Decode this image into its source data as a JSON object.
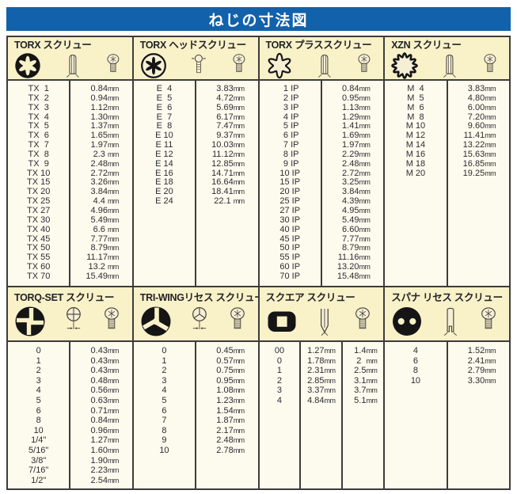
{
  "page_title": "ねじの寸法図",
  "unit_label": "mm",
  "colors": {
    "title_bar_bg": "#1261ab",
    "title_text": "#ffffff",
    "header_band_bg": "#f9f1c8",
    "data_bg": "#fdfbee",
    "border": "#3c3c3c",
    "icon_ink": "#151515"
  },
  "sections": [
    {
      "id": "torx-screw",
      "area": "top",
      "title": "TORX スクリュー",
      "icons": [
        "torx-socket-icon",
        "bit-side-icon",
        "screw-top-icon"
      ],
      "cols": 2,
      "unit": "mm",
      "rows": [
        [
          "TX  1",
          "0.84"
        ],
        [
          "TX  2",
          "0.94"
        ],
        [
          "TX  3",
          "1.12"
        ],
        [
          "TX  4",
          "1.30"
        ],
        [
          "TX  5",
          "1.37"
        ],
        [
          "TX  6",
          "1.65"
        ],
        [
          "TX  7",
          "1.97"
        ],
        [
          "TX  8",
          "2.3 "
        ],
        [
          "TX  9",
          "2.48"
        ],
        [
          "TX 10",
          "2.72"
        ],
        [
          "TX 15",
          "3.26"
        ],
        [
          "TX 20",
          "3.84"
        ],
        [
          "TX 25",
          "4.4 "
        ],
        [
          "TX 27",
          "4.96"
        ],
        [
          "TX 30",
          "5.49"
        ],
        [
          "TX 40",
          "6.6 "
        ],
        [
          "TX 45",
          "7.77"
        ],
        [
          "TX 50",
          "8.79"
        ],
        [
          "TX 55",
          "11.17"
        ],
        [
          "TX 60",
          "13.2 "
        ],
        [
          "TX 70",
          "15.49"
        ]
      ]
    },
    {
      "id": "torx-head-screw",
      "area": "top",
      "title": "TORX ヘッドスクリュー",
      "icons": [
        "torx-external-icon",
        "screw-side-icon",
        "screw-top-icon"
      ],
      "cols": 2,
      "unit": "mm",
      "rows": [
        [
          "E  4",
          "3.83"
        ],
        [
          "E  5",
          "4.72"
        ],
        [
          "E  6",
          "5.69"
        ],
        [
          "E  7",
          "6.17"
        ],
        [
          "E  8",
          "7.47"
        ],
        [
          "E 10",
          "9.37"
        ],
        [
          "E 11",
          "10.03"
        ],
        [
          "E 12",
          "11.12"
        ],
        [
          "E 14",
          "12.85"
        ],
        [
          "E 16",
          "14.71"
        ],
        [
          "E 18",
          "16.64"
        ],
        [
          "E 20",
          "18.41"
        ],
        [
          "E 24",
          "22.1 "
        ]
      ]
    },
    {
      "id": "torx-plus-screw",
      "area": "top",
      "title": "TORX プラススクリュー",
      "icons": [
        "torx-plus-icon",
        "bit-side-icon",
        "screw-top-icon"
      ],
      "cols": 2,
      "unit": "mm",
      "rows": [
        [
          " 1 IP",
          "0.84"
        ],
        [
          " 2 IP",
          "0.95"
        ],
        [
          " 3 IP",
          "1.13"
        ],
        [
          " 4 IP",
          "1.29"
        ],
        [
          " 5 IP",
          "1.41"
        ],
        [
          " 6 IP",
          "1.69"
        ],
        [
          " 7 IP",
          "1.97"
        ],
        [
          " 8 IP",
          "2.29"
        ],
        [
          " 9 IP",
          "2.48"
        ],
        [
          "10 IP",
          "2.72"
        ],
        [
          "15 IP",
          "3.25"
        ],
        [
          "20 IP",
          "3.84"
        ],
        [
          "25 IP",
          "4.39"
        ],
        [
          "27 IP",
          "4.95"
        ],
        [
          "30 IP",
          "5.49"
        ],
        [
          "40 IP",
          "6.60"
        ],
        [
          "45 IP",
          "7.77"
        ],
        [
          "50 IP",
          "8.79"
        ],
        [
          "55 IP",
          "11.16"
        ],
        [
          "60 IP",
          "13.20"
        ],
        [
          "70 IP",
          "15.48"
        ]
      ]
    },
    {
      "id": "xzn-screw",
      "area": "top",
      "title": "XZN スクリュー",
      "icons": [
        "xzn-spline-icon",
        "bit-side-icon",
        "screw-top-icon"
      ],
      "cols": 2,
      "unit": "mm",
      "rows": [
        [
          "M  4",
          "3.83"
        ],
        [
          "M  5",
          "4.80"
        ],
        [
          "M  6",
          "6.00"
        ],
        [
          "M  8",
          "7.20"
        ],
        [
          "M 10",
          "9.60"
        ],
        [
          "M 12",
          "11.41"
        ],
        [
          "M 14",
          "13.22"
        ],
        [
          "M 16",
          "15.63"
        ],
        [
          "M 18",
          "16.85"
        ],
        [
          "M 20",
          "19.25"
        ]
      ]
    },
    {
      "id": "torq-set-screw",
      "area": "bottom",
      "title": "TORQ-SET スクリュー",
      "icons": [
        "torq-set-socket-icon",
        "head-measure-cross-icon",
        "screw-top-icon"
      ],
      "cols": 2,
      "unit": "mm",
      "rows": [
        [
          "0",
          "0.43"
        ],
        [
          "1",
          "0.43"
        ],
        [
          "2",
          "0.43"
        ],
        [
          "3",
          "0.48"
        ],
        [
          "4",
          "0.56"
        ],
        [
          "5",
          "0.63"
        ],
        [
          "6",
          "0.71"
        ],
        [
          "8",
          "0.84"
        ],
        [
          "10",
          "0.96"
        ],
        [
          "1/4\"",
          "1.27"
        ],
        [
          "5/16\"",
          "1.60"
        ],
        [
          "3/8\"",
          "1.90"
        ],
        [
          "7/16\"",
          "2.23"
        ],
        [
          "1/2\"",
          "2.54"
        ]
      ]
    },
    {
      "id": "tri-wing-recess-screw",
      "area": "bottom",
      "title": "TRI-WINGリセス スクリュー",
      "icons": [
        "tri-wing-socket-icon",
        "head-measure-y-icon",
        "screw-top-icon"
      ],
      "cols": 2,
      "unit": "mm",
      "rows": [
        [
          "0",
          "0.45"
        ],
        [
          "1",
          "0.57"
        ],
        [
          "2",
          "0.75"
        ],
        [
          "3",
          "0.95"
        ],
        [
          "4",
          "1.08"
        ],
        [
          "5",
          "1.23"
        ],
        [
          "6",
          "1.54"
        ],
        [
          "7",
          "1.87"
        ],
        [
          "8",
          "2.17"
        ],
        [
          "9",
          "2.48"
        ],
        [
          "10",
          "2.78"
        ]
      ]
    },
    {
      "id": "square-screw",
      "area": "bottom",
      "title": "スクエア スクリュー",
      "icons": [
        "square-socket-icon",
        "bit-point-side-icon",
        "screw-top-icon"
      ],
      "cols": 3,
      "unit": "mm",
      "rows": [
        [
          "00",
          "1.27",
          "1.4"
        ],
        [
          "0",
          "1.78",
          "2  "
        ],
        [
          "1",
          "2.31",
          "2.5"
        ],
        [
          "2",
          "2.85",
          "3.1"
        ],
        [
          "3",
          "3.37",
          "3.7"
        ],
        [
          "4",
          "4.84",
          "5.1"
        ]
      ]
    },
    {
      "id": "spanner-recess-screw",
      "area": "bottom",
      "title": "スパナ リセス スクリュー",
      "icons": [
        "spanner-socket-icon",
        "bit-fork-side-icon",
        "screw-top-icon"
      ],
      "cols": 2,
      "unit": "mm",
      "rows": [
        [
          "4",
          "1.52"
        ],
        [
          "6",
          "2.41"
        ],
        [
          "8",
          "2.79"
        ],
        [
          "10",
          "3.30"
        ]
      ]
    }
  ]
}
